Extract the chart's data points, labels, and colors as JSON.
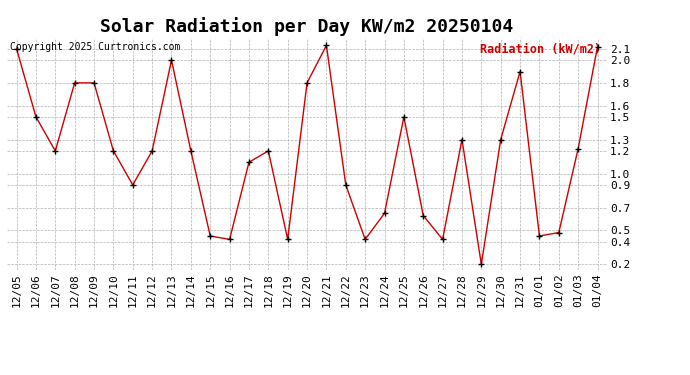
{
  "title": "Solar Radiation per Day KW/m2 20250104",
  "copyright": "Copyright 2025 Curtronics.com",
  "legend_label": "Radiation (kW/m2)",
  "dates": [
    "12/05",
    "12/06",
    "12/07",
    "12/08",
    "12/09",
    "12/10",
    "12/11",
    "12/12",
    "12/13",
    "12/14",
    "12/15",
    "12/16",
    "12/17",
    "12/18",
    "12/19",
    "12/20",
    "12/21",
    "12/22",
    "12/23",
    "12/24",
    "12/25",
    "12/26",
    "12/27",
    "12/28",
    "12/29",
    "12/30",
    "12/31",
    "01/01",
    "01/02",
    "01/03",
    "01/04"
  ],
  "values": [
    2.1,
    1.5,
    1.2,
    1.8,
    1.8,
    1.2,
    0.9,
    1.2,
    2.0,
    1.2,
    0.45,
    0.42,
    1.1,
    1.2,
    0.42,
    1.8,
    2.13,
    0.9,
    0.42,
    0.65,
    1.5,
    0.63,
    0.42,
    1.3,
    0.2,
    1.3,
    1.9,
    0.45,
    0.48,
    1.22,
    2.12
  ],
  "line_color": "#cc0000",
  "marker": "+",
  "marker_color": "#000000",
  "background_color": "#ffffff",
  "grid_color": "#aaaaaa",
  "title_fontsize": 13,
  "tick_fontsize": 8,
  "ylim": [
    0.15,
    2.2
  ],
  "yticks": [
    0.2,
    0.4,
    0.5,
    0.7,
    0.9,
    1.0,
    1.2,
    1.3,
    1.5,
    1.6,
    1.8,
    2.0,
    2.1
  ]
}
